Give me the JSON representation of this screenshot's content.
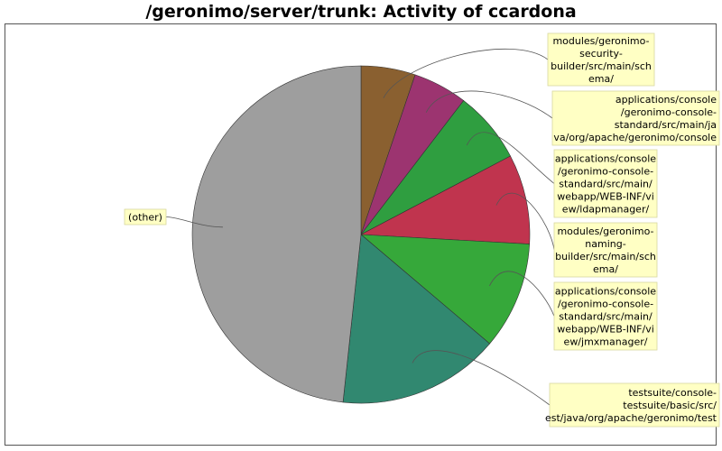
{
  "title": "/geronimo/server/trunk: Activity of ccardona",
  "chart_data": {
    "type": "pie",
    "slices": [
      {
        "label": "modules/geronimo-security-builder/src/main/schema/",
        "lines": [
          "modules/geronimo-",
          "security-",
          "builder/src/main/sch",
          "ema/"
        ],
        "value": 5.2,
        "color": "#8a6030"
      },
      {
        "label": "applications/console/geronimo-console-standard/src/main/java/org/apache/geronimo/console",
        "lines": [
          "applications/console",
          "/geronimo-console-",
          "standard/src/main/ja",
          "va/org/apache/geronimo/console"
        ],
        "value": 5.2,
        "color": "#9c3470"
      },
      {
        "label": "applications/console/geronimo-console-standard/src/main/webapp/WEB-INF/view/ldapmanager/",
        "lines": [
          "applications/console",
          "/geronimo-console-",
          "standard/src/main/",
          "webapp/WEB-INF/vi",
          "ew/ldapmanager/"
        ],
        "value": 6.9,
        "color": "#2f9e40"
      },
      {
        "label": "modules/geronimo-naming-builder/src/main/schema/",
        "lines": [
          "modules/geronimo-",
          "naming-",
          "builder/src/main/sch",
          "ema/"
        ],
        "value": 8.6,
        "color": "#c0344e"
      },
      {
        "label": "applications/console/geronimo-console-standard/src/main/webapp/WEB-INF/view/jmxmanager/",
        "lines": [
          "applications/console",
          "/geronimo-console-",
          "standard/src/main/",
          "webapp/WEB-INF/vi",
          "ew/jmxmanager/"
        ],
        "value": 10.3,
        "color": "#36a83a"
      },
      {
        "label": "testsuite/console-testsuite/basic/src/test/java/org/apache/geronimo/testsuite",
        "lines": [
          "testsuite/console-",
          "testsuite/basic/src/",
          "est/java/org/apache/geronimo/test"
        ],
        "value": 15.5,
        "color": "#318870"
      },
      {
        "label": "(other)",
        "lines": [
          "(other)"
        ],
        "value": 48.3,
        "color": "#9e9e9e"
      }
    ],
    "start_angle": "12 o'clock",
    "direction": "clockwise",
    "legend": "callout labels"
  }
}
